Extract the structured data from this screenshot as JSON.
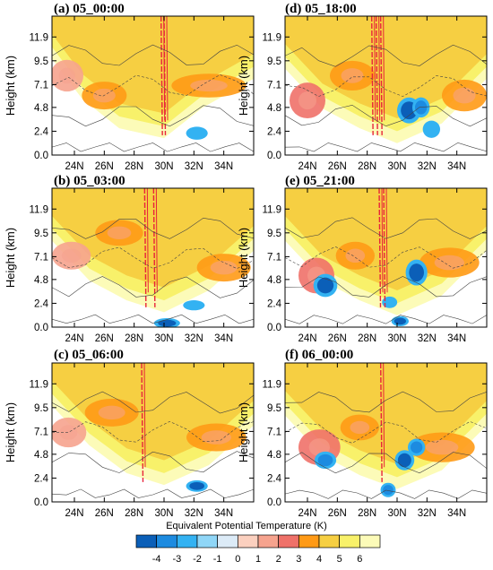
{
  "chart_data": {
    "type": "heatmap",
    "variable_title": "Equivalent Potential Temperature  (K)",
    "colorbar": {
      "ticks": [
        "-4",
        "-3",
        "-2",
        "-1",
        "0",
        "1",
        "2",
        "3",
        "4",
        "5",
        "6"
      ],
      "colors": [
        "#0b5fb8",
        "#1d8be0",
        "#33b2f2",
        "#8fd6f7",
        "#dcebf7",
        "#fbd0bf",
        "#f6a38e",
        "#ef7169",
        "#ff9a16",
        "#f6cf42",
        "#f8f16a",
        "#fcfbb8"
      ]
    },
    "colors": {
      "white": "#ffffff",
      "pale_yellow": "#fcfbb8",
      "yellow": "#f8f16a",
      "gold": "#f6cf42",
      "orange": "#ff9a16",
      "salmon": "#ef7169",
      "pink": "#f6a38e",
      "light_pink": "#fbd0bf",
      "deep_blue": "#0b5fb8",
      "blue": "#1d8be0",
      "sky": "#33b2f2",
      "red_line": "#e8243a",
      "contour": "#444444"
    },
    "yticks": [
      "0.0",
      "2.4",
      "4.8",
      "7.1",
      "9.5",
      "11.9"
    ],
    "ytick_values": [
      0.0,
      2.4,
      4.8,
      7.1,
      9.5,
      11.9
    ],
    "ylim": [
      0,
      14
    ],
    "ylabel": "Height (km)",
    "xticks": [
      "24N",
      "26N",
      "28N",
      "30N",
      "32N",
      "34N"
    ],
    "xtick_values": [
      24,
      26,
      28,
      30,
      32,
      34
    ],
    "xlim": [
      22.5,
      36
    ],
    "panels": [
      {
        "title": "(a) 05_00:00",
        "base": [
          [
            22.5,
            10
          ],
          [
            24.5,
            6
          ],
          [
            27,
            3
          ],
          [
            30,
            2
          ],
          [
            32.5,
            5
          ],
          [
            36,
            8
          ]
        ],
        "bands": [
          {
            "x": 23.5,
            "y": 8,
            "rx": 1.1,
            "ry": 1.6,
            "c": "pink"
          },
          {
            "x": 26,
            "y": 6,
            "rx": 1.5,
            "ry": 1.4,
            "c": "orange"
          },
          {
            "x": 33,
            "y": 7,
            "rx": 2.5,
            "ry": 1.2,
            "c": "orange"
          }
        ],
        "blobs": [
          {
            "x": 32.2,
            "y": 2.2,
            "rx": 0.5,
            "ry": 0.45,
            "c": "sky"
          }
        ],
        "red": [
          29.8,
          30.0
        ]
      },
      {
        "title": "(d) 05_18:00",
        "base": [
          [
            22.5,
            9
          ],
          [
            25,
            5
          ],
          [
            27.5,
            3
          ],
          [
            30,
            1.5
          ],
          [
            33,
            3.5
          ],
          [
            36,
            8
          ]
        ],
        "bands": [
          {
            "x": 24,
            "y": 5.5,
            "rx": 1.2,
            "ry": 1.8,
            "c": "salmon"
          },
          {
            "x": 27,
            "y": 8,
            "rx": 1.5,
            "ry": 1.5,
            "c": "orange"
          },
          {
            "x": 34.5,
            "y": 6,
            "rx": 1.5,
            "ry": 1.6,
            "c": "orange"
          }
        ],
        "blobs": [
          {
            "x": 30.8,
            "y": 4.5,
            "rx": 0.55,
            "ry": 0.9,
            "c": "deep_blue"
          },
          {
            "x": 31.6,
            "y": 4.8,
            "rx": 0.4,
            "ry": 0.7,
            "c": "blue"
          },
          {
            "x": 32.3,
            "y": 2.6,
            "rx": 0.4,
            "ry": 0.6,
            "c": "sky"
          }
        ],
        "red": [
          28.3,
          28.6,
          28.9
        ]
      },
      {
        "title": "(b) 05_03:00",
        "base": [
          [
            22.5,
            9
          ],
          [
            25,
            5
          ],
          [
            27.5,
            3
          ],
          [
            30,
            1.8
          ],
          [
            33,
            4
          ],
          [
            36,
            8
          ]
        ],
        "bands": [
          {
            "x": 23.8,
            "y": 7.2,
            "rx": 1.3,
            "ry": 1.4,
            "c": "pink"
          },
          {
            "x": 27,
            "y": 9.5,
            "rx": 1.6,
            "ry": 1.3,
            "c": "orange"
          },
          {
            "x": 34,
            "y": 6,
            "rx": 1.8,
            "ry": 1.4,
            "c": "orange"
          }
        ],
        "blobs": [
          {
            "x": 30.2,
            "y": 0.4,
            "rx": 0.6,
            "ry": 0.35,
            "c": "deep_blue"
          },
          {
            "x": 32,
            "y": 2.2,
            "rx": 0.5,
            "ry": 0.35,
            "c": "sky"
          }
        ],
        "red": [
          29.3,
          28.7
        ]
      },
      {
        "title": "(e) 05_21:00",
        "base": [
          [
            22.5,
            9
          ],
          [
            25,
            5
          ],
          [
            27.5,
            3
          ],
          [
            30,
            1.5
          ],
          [
            33,
            3.5
          ],
          [
            36,
            8
          ]
        ],
        "bands": [
          {
            "x": 24.6,
            "y": 5.2,
            "rx": 1.2,
            "ry": 1.8,
            "c": "salmon"
          },
          {
            "x": 27.2,
            "y": 7.2,
            "rx": 1.3,
            "ry": 1.4,
            "c": "orange"
          },
          {
            "x": 33.5,
            "y": 6.5,
            "rx": 2,
            "ry": 1.5,
            "c": "orange"
          }
        ],
        "blobs": [
          {
            "x": 25.2,
            "y": 4.2,
            "rx": 0.55,
            "ry": 0.8,
            "c": "deep_blue"
          },
          {
            "x": 31.3,
            "y": 5.5,
            "rx": 0.5,
            "ry": 0.9,
            "c": "deep_blue"
          },
          {
            "x": 30.2,
            "y": 0.6,
            "rx": 0.4,
            "ry": 0.35,
            "c": "deep_blue"
          },
          {
            "x": 29.5,
            "y": 2.5,
            "rx": 0.35,
            "ry": 0.4,
            "c": "sky"
          }
        ],
        "red": [
          28.8,
          29.1
        ]
      },
      {
        "title": "(c) 05_06:00",
        "base": [
          [
            22.5,
            10
          ],
          [
            25,
            6
          ],
          [
            27.5,
            3.2
          ],
          [
            30,
            2
          ],
          [
            33,
            4
          ],
          [
            36,
            8
          ]
        ],
        "bands": [
          {
            "x": 23.6,
            "y": 7,
            "rx": 1.2,
            "ry": 1.5,
            "c": "pink"
          },
          {
            "x": 26.5,
            "y": 9,
            "rx": 1.8,
            "ry": 1.4,
            "c": "orange"
          },
          {
            "x": 33.5,
            "y": 6.5,
            "rx": 2,
            "ry": 1.4,
            "c": "orange"
          }
        ],
        "blobs": [
          {
            "x": 32.2,
            "y": 1.6,
            "rx": 0.5,
            "ry": 0.4,
            "c": "deep_blue"
          }
        ],
        "red": [
          28.5
        ]
      },
      {
        "title": "(f) 06_00:00",
        "base": [
          [
            22.5,
            9
          ],
          [
            25,
            5
          ],
          [
            27.5,
            3
          ],
          [
            30,
            1.6
          ],
          [
            33,
            3.5
          ],
          [
            36,
            8
          ]
        ],
        "bands": [
          {
            "x": 24.8,
            "y": 5.5,
            "rx": 1.4,
            "ry": 1.8,
            "c": "salmon"
          },
          {
            "x": 27.5,
            "y": 7.5,
            "rx": 1.3,
            "ry": 1.3,
            "c": "orange"
          },
          {
            "x": 33,
            "y": 5.5,
            "rx": 2.2,
            "ry": 1.5,
            "c": "orange"
          }
        ],
        "blobs": [
          {
            "x": 25.2,
            "y": 4.2,
            "rx": 0.5,
            "ry": 0.6,
            "c": "blue"
          },
          {
            "x": 30.5,
            "y": 4.2,
            "rx": 0.45,
            "ry": 0.7,
            "c": "deep_blue"
          },
          {
            "x": 31.3,
            "y": 5.5,
            "rx": 0.4,
            "ry": 0.6,
            "c": "blue"
          },
          {
            "x": 29.4,
            "y": 1.2,
            "rx": 0.35,
            "ry": 0.5,
            "c": "blue"
          }
        ],
        "red": [
          28.9
        ]
      }
    ]
  }
}
